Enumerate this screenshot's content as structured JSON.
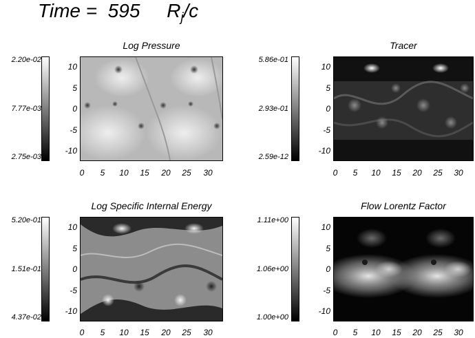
{
  "header": {
    "label": "Time =",
    "value": "595",
    "unit_main": "R",
    "unit_sub": "j",
    "unit_tail": "/c"
  },
  "panels": [
    {
      "title": "Log Pressure",
      "colorbar": {
        "max": "2.20e-02",
        "mid": "7.77e-03",
        "min": "2.75e-03"
      }
    },
    {
      "title": "Tracer",
      "colorbar": {
        "max": "5.86e-01",
        "mid": "2.93e-01",
        "min": "2.59e-12"
      }
    },
    {
      "title": "Log Specific Internal Energy",
      "colorbar": {
        "max": "5.20e-01",
        "mid": "1.51e-01",
        "min": "4.37e-02"
      }
    },
    {
      "title": "Flow Lorentz Factor",
      "colorbar": {
        "max": "1.11e+00",
        "mid": "1.06e+00",
        "min": "1.00e+00"
      }
    }
  ],
  "axes": {
    "x_ticks": [
      "0",
      "5",
      "10",
      "15",
      "20",
      "25",
      "30"
    ],
    "y_ticks": [
      "10",
      "5",
      "0",
      "-5",
      "-10"
    ],
    "xlim": [
      0,
      32
    ],
    "ylim": [
      -12,
      12
    ]
  }
}
